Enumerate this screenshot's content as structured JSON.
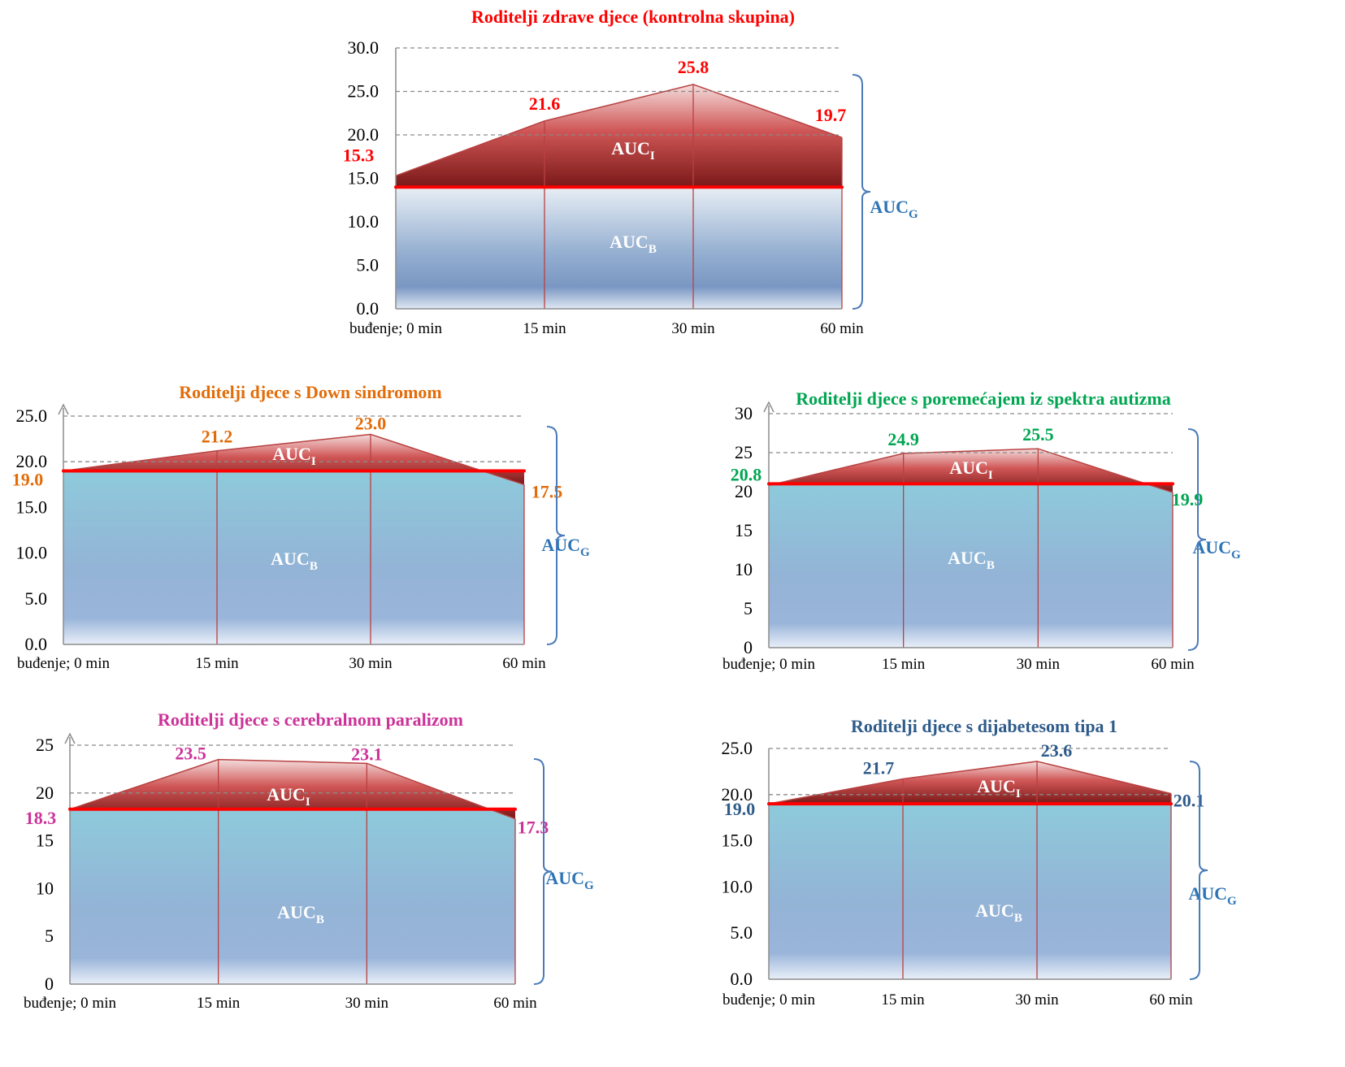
{
  "chart_data": [
    {
      "type": "area",
      "title": "Roditelji zdrave djece  (kontrolna skupina)",
      "title_color": "#ff0000",
      "label_color": "#ff0000",
      "categories": [
        "buđenje; 0 min",
        "15 min",
        "30 min",
        "60 min"
      ],
      "values": [
        15.3,
        21.6,
        25.8,
        19.7
      ],
      "value_labels": [
        "15.3",
        "21.6",
        "25.8",
        "19.7"
      ],
      "baseline": 14.0,
      "ylim": [
        0,
        30
      ],
      "yticks": [
        "0.0",
        "5.0",
        "10.0",
        "15.0",
        "20.0",
        "25.0",
        "30.0"
      ],
      "dashed_gridlines": [
        20,
        25,
        30
      ],
      "area_labels": {
        "increase": "AUC",
        "increase_sub": "I",
        "base": "AUC",
        "base_sub": "B",
        "total": "AUC",
        "total_sub": "G"
      }
    },
    {
      "type": "area",
      "title": "Roditelji djece s Down sindromom",
      "title_color": "#e36c09",
      "label_color": "#e36c09",
      "categories": [
        "buđenje; 0 min",
        "15 min",
        "30 min",
        "60 min"
      ],
      "values": [
        19.0,
        21.2,
        23.0,
        17.5
      ],
      "value_labels": [
        "19.0",
        "21.2",
        "23.0",
        "17.5"
      ],
      "baseline": 19.0,
      "ylim": [
        0,
        25
      ],
      "yticks": [
        "0.0",
        "5.0",
        "10.0",
        "15.0",
        "20.0",
        "25.0"
      ],
      "dashed_gridlines": [
        20,
        25
      ],
      "area_labels": {
        "increase": "AUC",
        "increase_sub": "I",
        "base": "AUC",
        "base_sub": "B",
        "total": "AUC",
        "total_sub": "G"
      }
    },
    {
      "type": "area",
      "title": "Roditelji djece s poremećajem iz spektra autizma",
      "title_color": "#00a651",
      "label_color": "#00a651",
      "categories": [
        "buđenje; 0 min",
        "15 min",
        "30 min",
        "60 min"
      ],
      "values": [
        20.8,
        24.9,
        25.5,
        19.9
      ],
      "value_labels": [
        "20.8",
        "24.9",
        "25.5",
        "19.9"
      ],
      "baseline": 21.0,
      "ylim": [
        0,
        30
      ],
      "yticks": [
        "0",
        "5",
        "10",
        "15",
        "20",
        "25",
        "30"
      ],
      "dashed_gridlines": [
        25,
        30
      ],
      "area_labels": {
        "increase": "AUC",
        "increase_sub": "I",
        "base": "AUC",
        "base_sub": "B",
        "total": "AUC",
        "total_sub": "G"
      }
    },
    {
      "type": "area",
      "title": "Roditelji djece s cerebralnom paralizom",
      "title_color": "#cc3399",
      "label_color": "#cc3399",
      "categories": [
        "buđenje; 0 min",
        "15 min",
        "30 min",
        "60 min"
      ],
      "values": [
        18.3,
        23.5,
        23.1,
        17.3
      ],
      "value_labels": [
        "18.3",
        "23.5",
        "23.1",
        "17.3"
      ],
      "baseline": 18.3,
      "ylim": [
        0,
        25
      ],
      "yticks": [
        "0",
        "5",
        "10",
        "15",
        "20",
        "25"
      ],
      "dashed_gridlines": [
        20,
        25
      ],
      "area_labels": {
        "increase": "AUC",
        "increase_sub": "I",
        "base": "AUC",
        "base_sub": "B",
        "total": "AUC",
        "total_sub": "G"
      }
    },
    {
      "type": "area",
      "title": "Roditelji djece s dijabetesom tipa 1",
      "title_color": "#2e5b8a",
      "label_color": "#2e5b8a",
      "categories": [
        "buđenje; 0 min",
        "15 min",
        "30 min",
        "60 min"
      ],
      "values": [
        19.0,
        21.7,
        23.6,
        20.1
      ],
      "value_labels": [
        "19.0",
        "21.7",
        "23.6",
        "20.1"
      ],
      "baseline": 19.0,
      "ylim": [
        0,
        25
      ],
      "yticks": [
        "0.0",
        "5.0",
        "10.0",
        "15.0",
        "20.0",
        "25.0"
      ],
      "dashed_gridlines": [
        20,
        25
      ],
      "area_labels": {
        "increase": "AUC",
        "increase_sub": "I",
        "base": "AUC",
        "base_sub": "B",
        "total": "AUC",
        "total_sub": "G"
      }
    }
  ]
}
